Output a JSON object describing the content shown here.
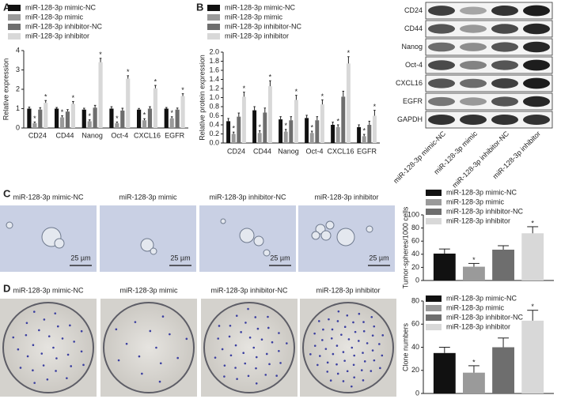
{
  "panels": [
    "A",
    "B",
    "C",
    "D"
  ],
  "blot": {
    "rows": [
      "CD24",
      "CD44",
      "Nanog",
      "Oct-4",
      "CXCL16",
      "EGFR",
      "GAPDH"
    ],
    "lanes": [
      "miR-128-3p mimic-NC",
      "miR-128-3p mimic",
      "miR-128-3p inhibitor-NC",
      "miR-128-3p inhibitor"
    ]
  },
  "images": {
    "sphere_titles": [
      "miR-128-3p mimic-NC",
      "miR-128-3p mimic",
      "miR-128-3p inhibitor-NC",
      "miR-128-3p inhibitor"
    ],
    "scale_bars": [
      "25 µm",
      "25 µm",
      "25 µm",
      "25 µm"
    ],
    "clone_titles": [
      "miR-128-3p mimic-NC",
      "miR-128-3p mimic",
      "miR-128-3p inhibitor-NC",
      "miR-128-3p inhibitor"
    ]
  },
  "chart_data": [
    {
      "type": "bar",
      "ylabel": "Relative expression",
      "categories": [
        "CD24",
        "CD44",
        "Nanog",
        "Oct-4",
        "CXCL16",
        "EGFR"
      ],
      "ylim": [
        0,
        4
      ],
      "yticks": [
        0,
        1,
        2,
        3,
        4
      ],
      "series": [
        {
          "name": "miR-128-3p mimic-NC",
          "color": "#111111",
          "values": [
            1.0,
            1.0,
            0.95,
            1.0,
            0.95,
            1.0
          ],
          "errors": [
            0.08,
            0.06,
            0.07,
            0.1,
            0.06,
            0.06
          ],
          "significance": [
            null,
            null,
            null,
            null,
            null,
            null
          ]
        },
        {
          "name": "miR-128-3p mimic",
          "color": "#9a9a9a",
          "values": [
            0.25,
            0.55,
            0.35,
            0.25,
            0.4,
            0.5
          ],
          "errors": [
            0.06,
            0.08,
            0.07,
            0.06,
            0.08,
            0.08
          ],
          "significance": [
            "*",
            "*",
            "*",
            "*",
            "*",
            "*"
          ]
        },
        {
          "name": "miR-128-3p inhibitor-NC",
          "color": "#6e6e6e",
          "values": [
            0.95,
            0.85,
            1.05,
            0.9,
            1.0,
            0.95
          ],
          "errors": [
            0.1,
            0.1,
            0.12,
            0.12,
            0.1,
            0.08
          ],
          "significance": [
            null,
            null,
            null,
            null,
            null,
            null
          ]
        },
        {
          "name": "miR-128-3p inhibitor",
          "color": "#d8d8d8",
          "values": [
            1.3,
            1.25,
            3.4,
            2.55,
            2.05,
            1.65
          ],
          "errors": [
            0.12,
            0.12,
            0.2,
            0.15,
            0.15,
            0.12
          ],
          "significance": [
            "*",
            "*",
            "*",
            "*",
            "*",
            "*"
          ]
        }
      ]
    },
    {
      "type": "bar",
      "ylabel": "Relative protein expression",
      "categories": [
        "CD24",
        "CD44",
        "Nanog",
        "Oct-4",
        "CXCL16",
        "EGFR"
      ],
      "ylim": [
        0,
        2
      ],
      "yticks": [
        {
          "value": 0,
          "label": "0.0"
        },
        {
          "value": 0.2,
          "label": "0.2"
        },
        {
          "value": 0.4,
          "label": "0.4"
        },
        {
          "value": 0.6,
          "label": "0.6"
        },
        {
          "value": 0.8,
          "label": "0.8"
        },
        {
          "value": 1,
          "label": "1.0"
        },
        {
          "value": 1.2,
          "label": "1.2"
        },
        {
          "value": 1.4,
          "label": "1.4"
        },
        {
          "value": 1.6,
          "label": "1.6"
        },
        {
          "value": 1.8,
          "label": "1.8"
        },
        {
          "value": 2,
          "label": "2.0"
        }
      ],
      "series": [
        {
          "name": "miR-128-3p mimic-NC",
          "color": "#111111",
          "values": [
            0.48,
            0.72,
            0.52,
            0.55,
            0.4,
            0.35
          ],
          "errors": [
            0.06,
            0.08,
            0.06,
            0.06,
            0.06,
            0.05
          ],
          "significance": [
            null,
            null,
            null,
            null,
            null,
            null
          ]
        },
        {
          "name": "miR-128-3p mimic",
          "color": "#9a9a9a",
          "values": [
            0.2,
            0.22,
            0.25,
            0.22,
            0.35,
            0.15
          ],
          "errors": [
            0.04,
            0.05,
            0.05,
            0.04,
            0.05,
            0.04
          ],
          "significance": [
            "*",
            "*",
            "*",
            "*",
            "*",
            "*"
          ]
        },
        {
          "name": "miR-128-3p inhibitor-NC",
          "color": "#6e6e6e",
          "values": [
            0.58,
            0.67,
            0.5,
            0.5,
            1.02,
            0.4
          ],
          "errors": [
            0.08,
            0.1,
            0.08,
            0.08,
            0.12,
            0.08
          ],
          "significance": [
            null,
            null,
            null,
            null,
            null,
            null
          ]
        },
        {
          "name": "miR-128-3p inhibitor",
          "color": "#d8d8d8",
          "values": [
            1.02,
            1.25,
            0.95,
            0.85,
            1.75,
            0.6
          ],
          "errors": [
            0.1,
            0.12,
            0.1,
            0.1,
            0.15,
            0.12
          ],
          "significance": [
            "*",
            "*",
            "*",
            "*",
            "*",
            "*"
          ]
        }
      ]
    },
    {
      "type": "bar",
      "ylabel": "Tumor-spheres/1000 cells",
      "categories": [
        null
      ],
      "ylim": [
        0,
        100
      ],
      "yticks": [
        0,
        20,
        40,
        60,
        80,
        100
      ],
      "series": [
        {
          "name": "miR-128-3p mimic-NC",
          "color": "#111111",
          "values": [
            41
          ],
          "errors": [
            7
          ],
          "significance": [
            null
          ]
        },
        {
          "name": "miR-128-3p mimic",
          "color": "#9a9a9a",
          "values": [
            21
          ],
          "errors": [
            5
          ],
          "significance": [
            "*"
          ]
        },
        {
          "name": "miR-128-3p inhibitor-NC",
          "color": "#6e6e6e",
          "values": [
            47
          ],
          "errors": [
            6
          ],
          "significance": [
            null
          ]
        },
        {
          "name": "miR-128-3p inhibitor",
          "color": "#d8d8d8",
          "values": [
            72
          ],
          "errors": [
            10
          ],
          "significance": [
            "*"
          ]
        }
      ]
    },
    {
      "type": "bar",
      "ylabel": "Clone numbers",
      "categories": [
        null
      ],
      "ylim": [
        0,
        80
      ],
      "yticks": [
        0,
        20,
        40,
        60,
        80
      ],
      "series": [
        {
          "name": "miR-128-3p mimic-NC",
          "color": "#111111",
          "values": [
            35
          ],
          "errors": [
            5
          ],
          "significance": [
            null
          ]
        },
        {
          "name": "miR-128-3p mimic",
          "color": "#9a9a9a",
          "values": [
            18
          ],
          "errors": [
            6
          ],
          "significance": [
            "*"
          ]
        },
        {
          "name": "miR-128-3p inhibitor-NC",
          "color": "#6e6e6e",
          "values": [
            40
          ],
          "errors": [
            8
          ],
          "significance": [
            null
          ]
        },
        {
          "name": "miR-128-3p inhibitor",
          "color": "#d8d8d8",
          "values": [
            63
          ],
          "errors": [
            9
          ],
          "significance": [
            "*"
          ]
        }
      ]
    }
  ]
}
